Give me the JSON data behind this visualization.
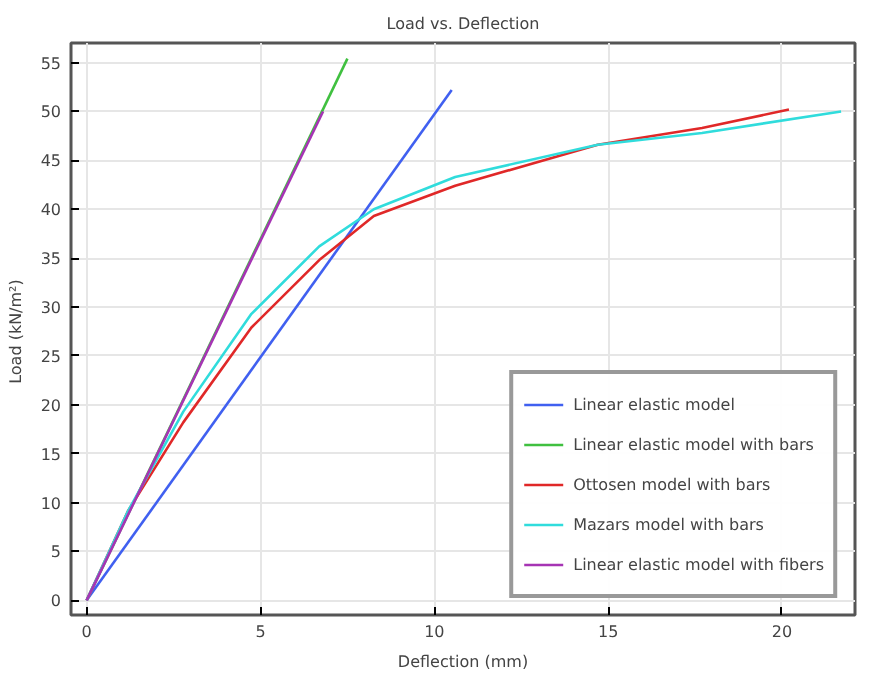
{
  "chart_data": {
    "type": "line",
    "title": "Load vs. Deflection",
    "xlabel": "Deflection (mm)",
    "ylabel": "Load  (kN/m²)",
    "xlim": [
      -0.45,
      22.1
    ],
    "ylim": [
      -1.5,
      57
    ],
    "xticks": [
      0,
      5,
      10,
      15,
      20
    ],
    "yticks": [
      0,
      5,
      10,
      15,
      20,
      25,
      30,
      35,
      40,
      45,
      50,
      55
    ],
    "grid": true,
    "legend": "bottom right",
    "line_style": "solid",
    "marker": "none",
    "series": [
      {
        "name": "Linear elastic model",
        "color": "#4060f0",
        "x": [
          0,
          10.5
        ],
        "values": [
          0,
          52.2
        ]
      },
      {
        "name": "Linear elastic model with bars",
        "color": "#40c040",
        "x": [
          0,
          7.5
        ],
        "values": [
          0,
          55.4
        ]
      },
      {
        "name": "Ottosen model with bars",
        "color": "#e02828",
        "x": [
          0,
          1.2,
          2.78,
          4.74,
          6.69,
          8.26,
          10.6,
          14.7,
          17.7,
          20.2
        ],
        "values": [
          0,
          9.2,
          18.2,
          27.9,
          34.8,
          39.3,
          42.4,
          46.6,
          48.3,
          50.2
        ]
      },
      {
        "name": "Mazars model with bars",
        "color": "#30dcdc",
        "x": [
          0,
          1.2,
          2.78,
          4.74,
          6.69,
          8.26,
          10.6,
          14.7,
          17.7,
          21.7
        ],
        "values": [
          0,
          9.2,
          19.3,
          29.3,
          36.2,
          40.0,
          43.3,
          46.6,
          47.8,
          50.0
        ]
      },
      {
        "name": "Linear elastic model with fibers",
        "color": "#a634b4",
        "x": [
          0,
          6.8
        ],
        "values": [
          0,
          50
        ]
      }
    ]
  }
}
